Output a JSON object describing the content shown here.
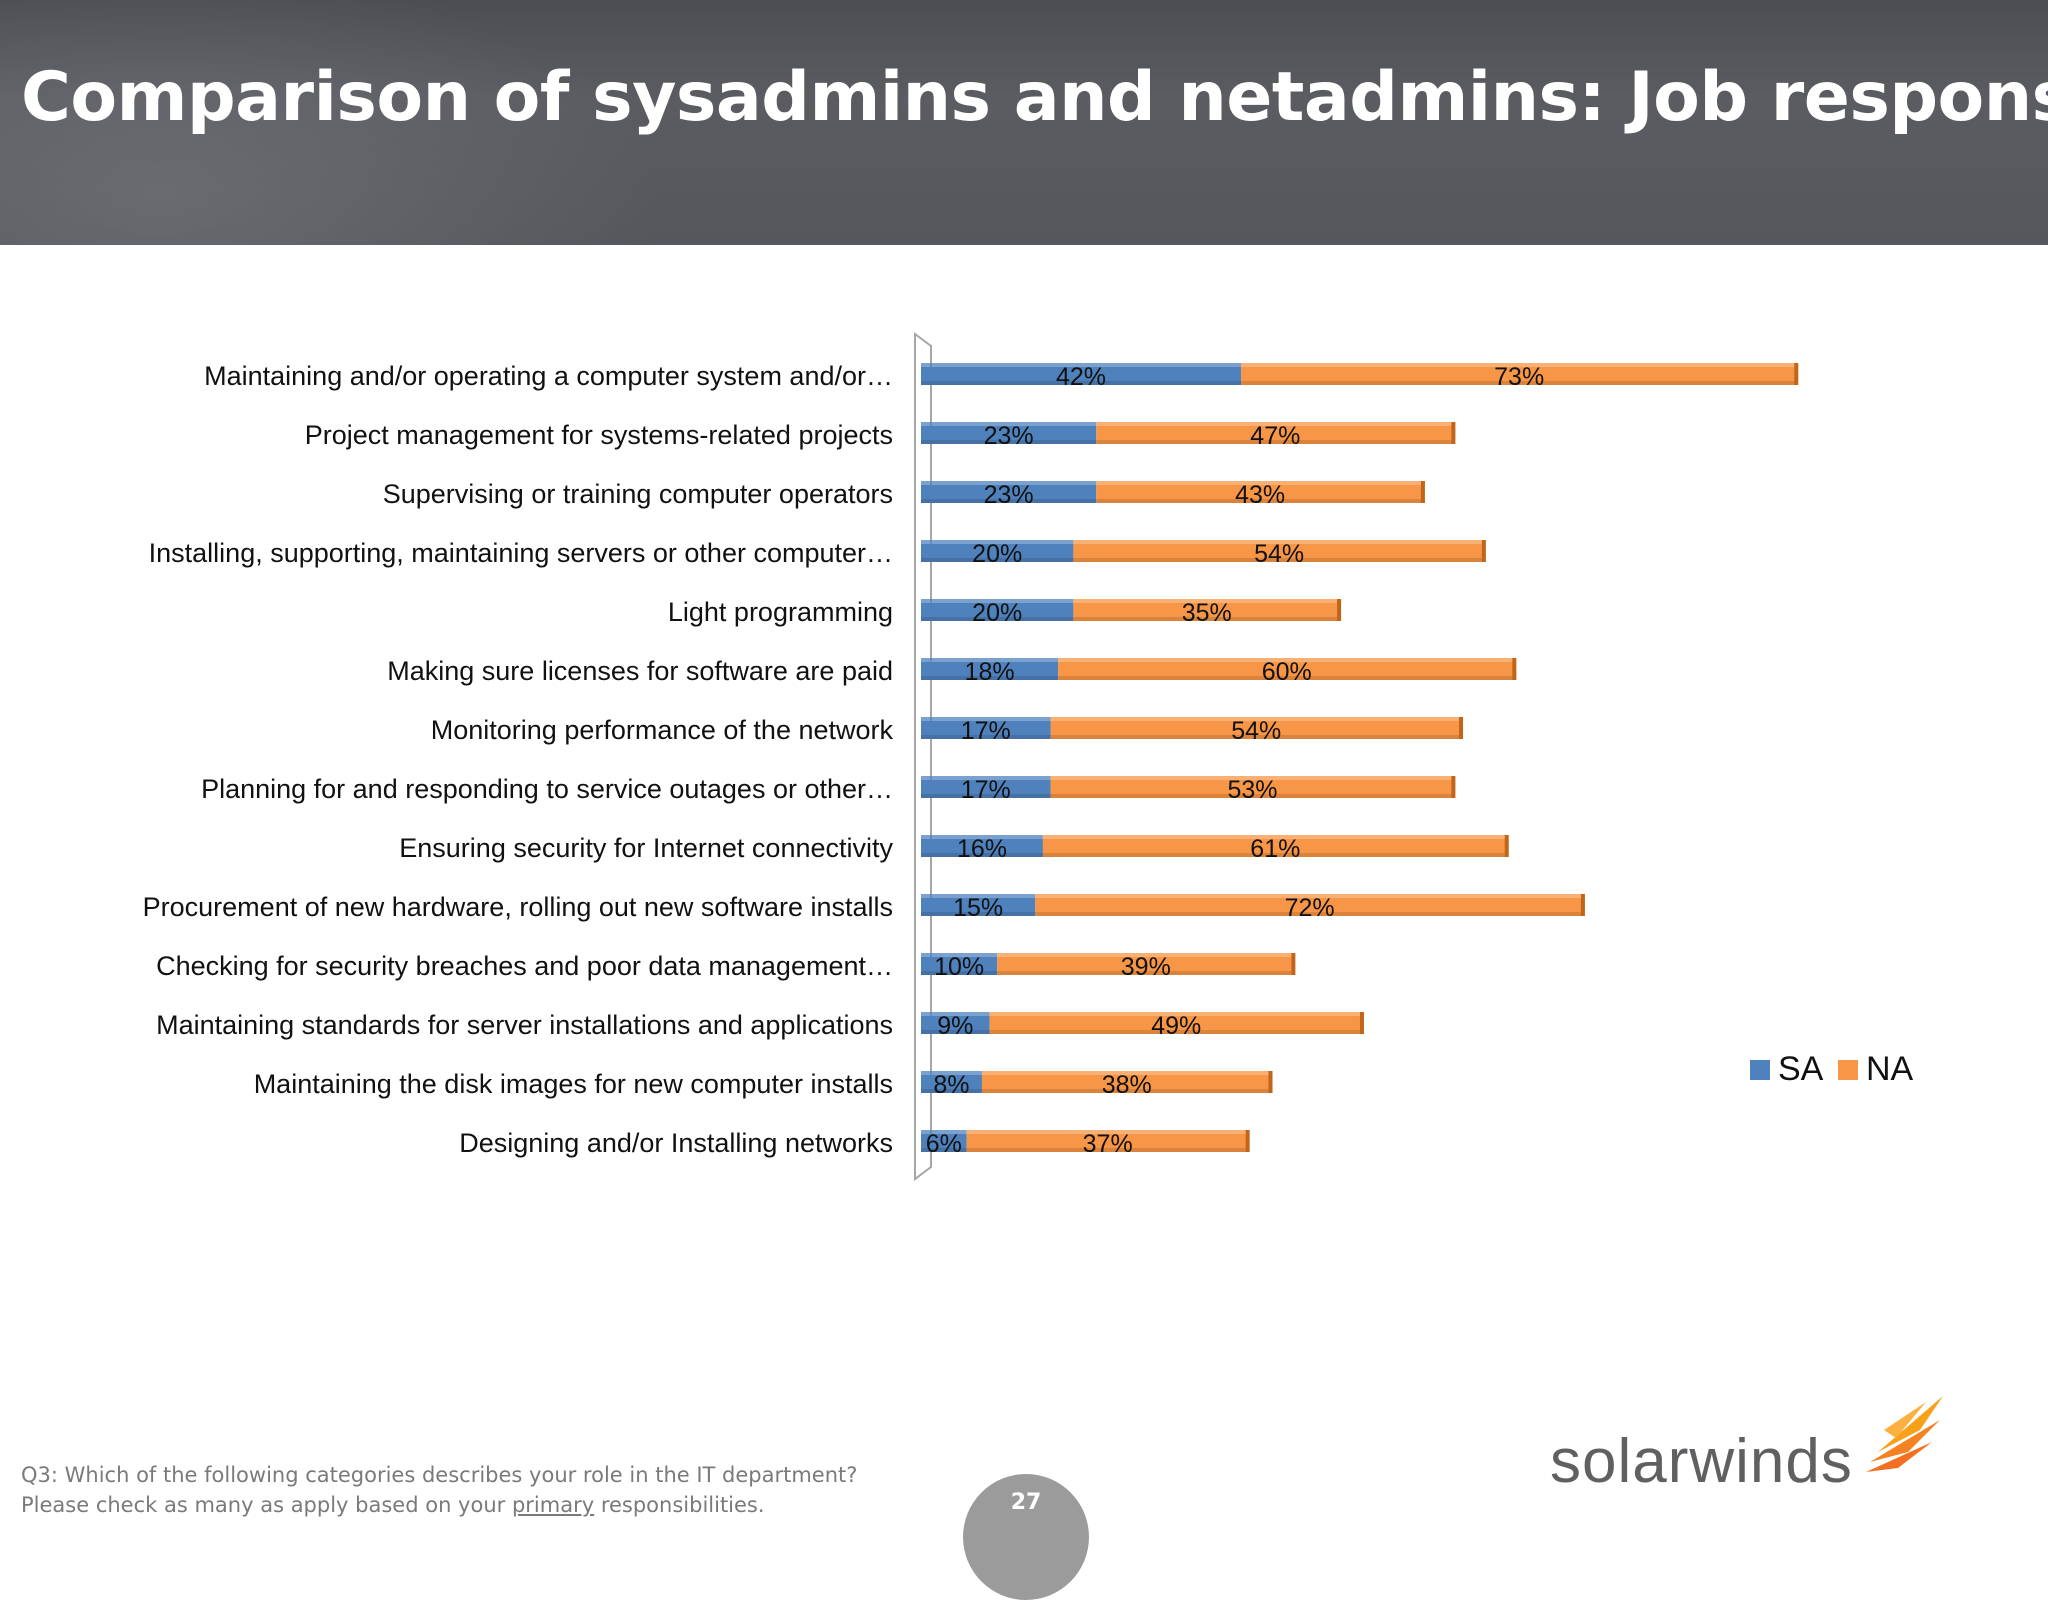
{
  "header": {
    "title": "Comparison of sysadmins and netadmins: Job responsibilities"
  },
  "chart_data": {
    "type": "bar",
    "orientation": "horizontal",
    "stacked": true,
    "categories": [
      "Maintaining and/or operating a computer system and/or…",
      "Project management for systems-related projects",
      "Supervising or training computer operators",
      "Installing, supporting, maintaining servers or other computer…",
      "Light programming",
      "Making sure licenses for software are paid",
      "Monitoring performance of the network",
      "Planning for and responding to service outages or other…",
      "Ensuring security for Internet connectivity",
      "Procurement of new hardware, rolling out new software installs",
      "Checking for security breaches and poor data management…",
      "Maintaining standards for server installations and applications",
      "Maintaining the disk images for new computer installs",
      "Designing and/or Installing networks"
    ],
    "series": [
      {
        "name": "SA",
        "color": "#4f81bd",
        "values": [
          42,
          23,
          23,
          20,
          20,
          18,
          17,
          17,
          16,
          15,
          10,
          9,
          8,
          6
        ]
      },
      {
        "name": "NA",
        "color": "#f79646",
        "values": [
          73,
          47,
          43,
          54,
          35,
          60,
          54,
          53,
          61,
          72,
          39,
          49,
          38,
          37
        ]
      }
    ],
    "value_suffix": "%",
    "legend_position": "right",
    "grid": false
  },
  "footer": {
    "question_line1": "Q3: Which of the following categories describes your role in the IT department?",
    "question_line2_pre": "Please check as many as apply based on your ",
    "question_line2_underlined": "primary",
    "question_line2_post": " responsibilities.",
    "page_number": "27",
    "logo_text": "solarwinds"
  }
}
